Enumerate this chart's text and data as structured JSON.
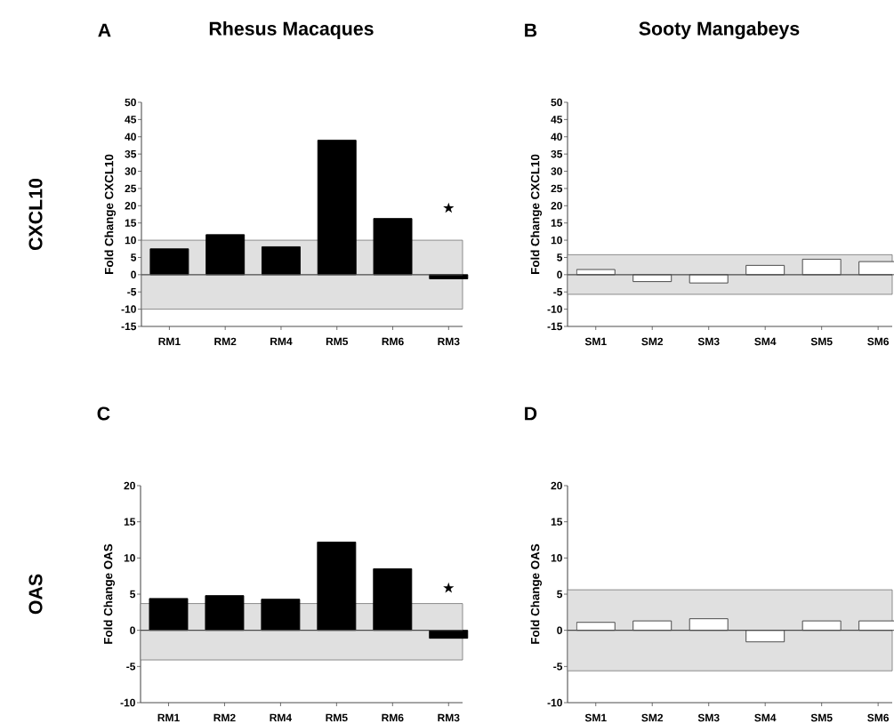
{
  "chart_data": [
    {
      "type": "bar",
      "title": "A",
      "subtitle": "Rhesus Macaques",
      "ylabel": "Fold Change CXCL10",
      "categories": [
        "RM1",
        "RM2",
        "RM4",
        "RM5",
        "RM6",
        "RM3"
      ],
      "values": [
        7.5,
        11.6,
        8.1,
        39.0,
        16.3,
        -1.2
      ],
      "color": "#000000",
      "ylim": [
        -15,
        50
      ],
      "yticks": [
        -15,
        -10,
        -5,
        0,
        5,
        10,
        15,
        20,
        25,
        30,
        35,
        40,
        45,
        50
      ],
      "bands": [
        {
          "axis": "y",
          "from": -10,
          "to": 10,
          "color": "#e0e0e0"
        }
      ],
      "ref_lines": [
        {
          "axis": "y",
          "value": 0
        }
      ],
      "annotations": [
        "CXCL10",
        "★"
      ]
    },
    {
      "type": "bar",
      "title": "B",
      "subtitle": "Sooty Mangabeys",
      "ylabel": "Fold Change CXCL10",
      "categories": [
        "SM1",
        "SM2",
        "SM3",
        "SM4",
        "SM5",
        "SM6"
      ],
      "values": [
        1.5,
        -2.0,
        -2.4,
        2.7,
        4.5,
        3.8
      ],
      "color": "#ffffff",
      "ylim": [
        -15,
        50
      ],
      "yticks": [
        -15,
        -10,
        -5,
        0,
        5,
        10,
        15,
        20,
        25,
        30,
        35,
        40,
        45,
        50
      ],
      "bands": [
        {
          "axis": "y",
          "from": -5.7,
          "to": 5.8,
          "color": "#e0e0e0"
        }
      ],
      "ref_lines": [
        {
          "axis": "y",
          "value": 0
        }
      ]
    },
    {
      "type": "bar",
      "title": "C",
      "ylabel": "Fold Change OAS",
      "categories": [
        "RM1",
        "RM2",
        "RM4",
        "RM5",
        "RM6",
        "RM3"
      ],
      "values": [
        4.4,
        4.8,
        4.3,
        12.2,
        8.5,
        -1.1
      ],
      "color": "#000000",
      "ylim": [
        -10,
        20
      ],
      "yticks": [
        -10,
        -5,
        0,
        5,
        10,
        15,
        20
      ],
      "bands": [
        {
          "axis": "y",
          "from": -4.1,
          "to": 3.7,
          "color": "#e0e0e0"
        }
      ],
      "ref_lines": [
        {
          "axis": "y",
          "value": 0
        }
      ],
      "annotations": [
        "OAS",
        "★"
      ]
    },
    {
      "type": "bar",
      "title": "D",
      "ylabel": "Fold Change OAS",
      "categories": [
        "SM1",
        "SM2",
        "SM3",
        "SM4",
        "SM5",
        "SM6"
      ],
      "values": [
        1.1,
        1.3,
        1.6,
        -1.6,
        1.3,
        1.3
      ],
      "color": "#ffffff",
      "ylim": [
        -10,
        20
      ],
      "yticks": [
        -10,
        -5,
        0,
        5,
        10,
        15,
        20
      ],
      "bands": [
        {
          "axis": "y",
          "from": -5.6,
          "to": 5.6,
          "color": "#e0e0e0"
        }
      ],
      "ref_lines": [
        {
          "axis": "y",
          "value": 0
        }
      ]
    }
  ]
}
